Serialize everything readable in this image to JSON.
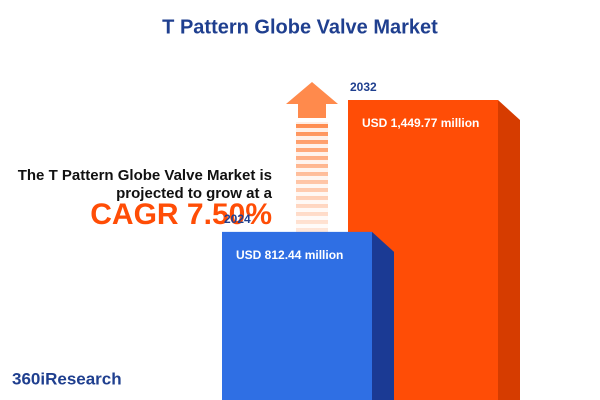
{
  "chart_data": {
    "type": "bar",
    "title": "T Pattern Globe Valve Market",
    "subtitle": [
      "The T Pattern Globe Valve Market is",
      "projected to grow at a"
    ],
    "headline": "CAGR 7.50%",
    "categories": [
      "2024",
      "2032"
    ],
    "values": [
      812.44,
      1449.77
    ],
    "value_labels": [
      "USD 812.44 million",
      "USD 1,449.77 million"
    ],
    "colors": [
      "#2f6fe4",
      "#ff4d06"
    ],
    "side_colors": [
      "#1b3a94",
      "#d63c00"
    ],
    "brand": "360iResearch"
  }
}
